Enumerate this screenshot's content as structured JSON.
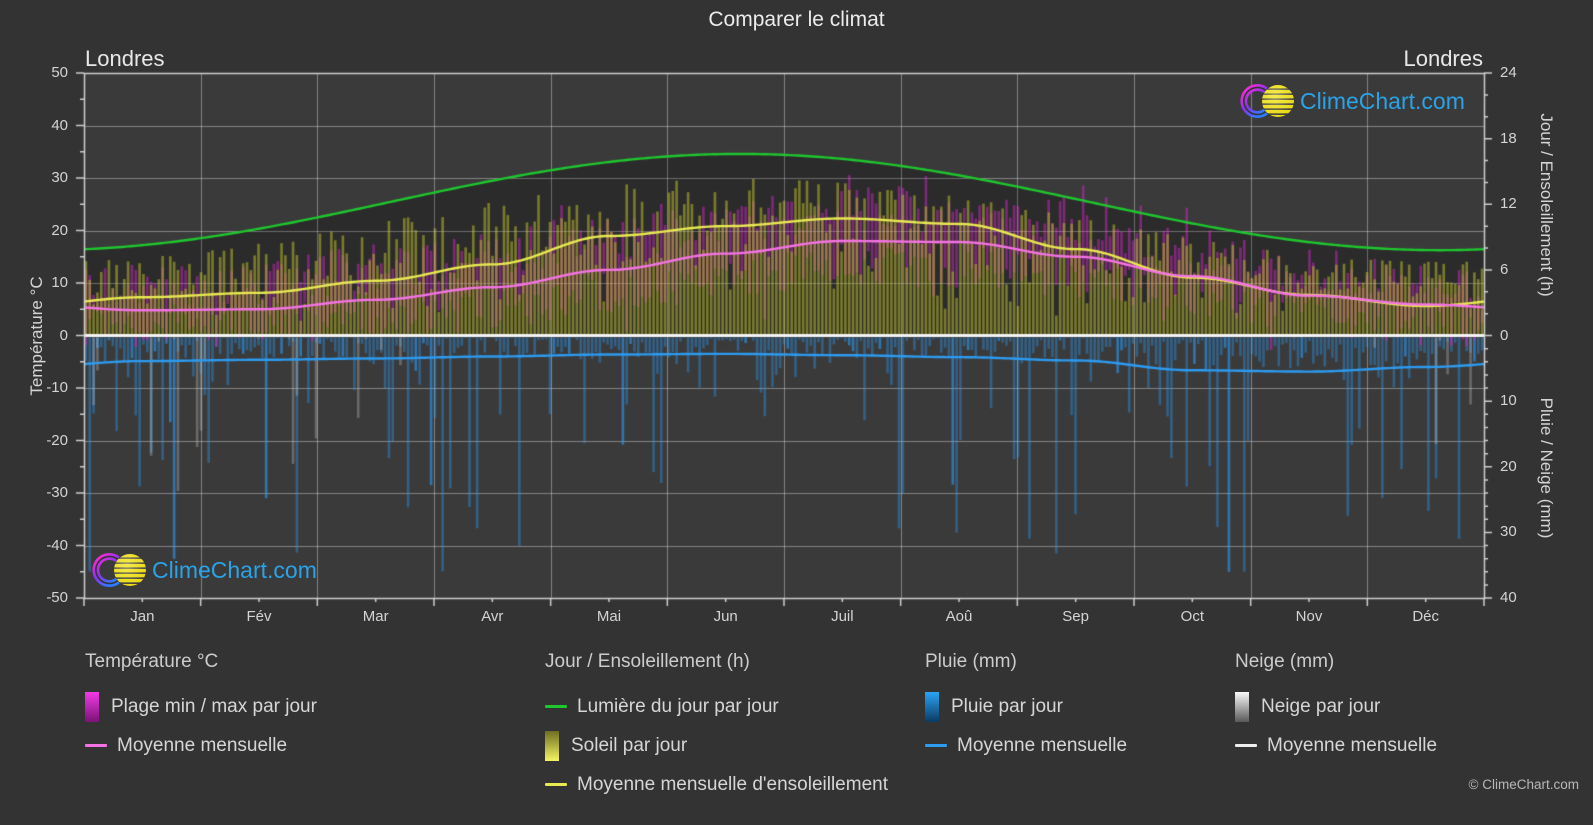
{
  "page": {
    "title": "Comparer le climat",
    "copyright": "© ClimeChart.com",
    "background": "#333333",
    "plot_background": "#3a3a3a"
  },
  "branding": {
    "logo_text": "ClimeChart.com",
    "logo_text_color": "#2aa3e8"
  },
  "panel_labels": {
    "left": "Londres",
    "right": "Londres"
  },
  "axes": {
    "left": {
      "title": "Température °C",
      "ticks": [
        50,
        40,
        30,
        20,
        10,
        0,
        -10,
        -20,
        -30,
        -40,
        -50
      ],
      "range": [
        -50,
        50
      ]
    },
    "right_top": {
      "title": "Jour / Ensoleillement (h)",
      "ticks": [
        24,
        18,
        12,
        6,
        0
      ],
      "range": [
        0,
        24
      ]
    },
    "right_bottom": {
      "title": "Pluie / Neige (mm)",
      "ticks": [
        10,
        20,
        30,
        40
      ],
      "range": [
        0,
        40
      ]
    },
    "x": {
      "months": [
        "Jan",
        "Fév",
        "Mar",
        "Avr",
        "Mai",
        "Jun",
        "Juil",
        "Aoû",
        "Sep",
        "Oct",
        "Nov",
        "Déc"
      ]
    }
  },
  "chart_data": {
    "type": "climate-composite",
    "location": "Londres",
    "months": [
      "Jan",
      "Fév",
      "Mar",
      "Avr",
      "Mai",
      "Jun",
      "Juil",
      "Aoû",
      "Sep",
      "Oct",
      "Nov",
      "Déc"
    ],
    "daylight_curve": {
      "mean_h": 12.2,
      "amplitude_h": 4.4,
      "peak_day_of_year": 171
    },
    "series": [
      {
        "name": "Lumière du jour par jour",
        "unit": "h",
        "type": "line",
        "color": "#1fc62e",
        "axis": "right_top",
        "monthly": [
          8.0,
          9.6,
          11.7,
          13.9,
          15.7,
          16.6,
          16.2,
          14.8,
          12.7,
          10.6,
          8.7,
          7.8
        ]
      },
      {
        "name": "Moyenne mensuelle d'ensoleillement",
        "unit": "h",
        "type": "line",
        "color": "#e8e952",
        "axis": "right_top",
        "monthly": [
          3.5,
          3.9,
          5.0,
          6.5,
          9.1,
          10.0,
          10.7,
          10.2,
          7.9,
          5.3,
          3.7,
          2.7
        ]
      },
      {
        "name": "Soleil par jour",
        "unit": "h",
        "type": "daily-bars",
        "color": "#afaf2d",
        "axis": "right_top",
        "monthly_typical_max": [
          7.0,
          8.4,
          10.3,
          12.2,
          13.8,
          14.6,
          14.3,
          13.0,
          11.2,
          9.3,
          7.7,
          6.9
        ]
      },
      {
        "name": "Plage min / max par jour",
        "unit": "°C",
        "type": "daily-range-bars",
        "color": "#cd28c3",
        "axis": "left",
        "monthly_min": [
          2.0,
          2.0,
          3.5,
          5.5,
          8.5,
          11.5,
          13.5,
          13.5,
          11.5,
          8.0,
          4.5,
          2.5
        ],
        "monthly_max": [
          8.0,
          9.0,
          12.0,
          15.0,
          18.0,
          21.0,
          23.0,
          23.0,
          20.0,
          15.0,
          11.0,
          8.0
        ]
      },
      {
        "name": "Moyenne mensuelle (température)",
        "unit": "°C",
        "type": "line",
        "color": "#f473e4",
        "axis": "left",
        "monthly": [
          4.8,
          5.0,
          6.8,
          9.2,
          12.5,
          15.6,
          18.0,
          17.8,
          15.0,
          11.3,
          7.6,
          5.9
        ]
      },
      {
        "name": "Pluie par jour",
        "unit": "mm",
        "type": "daily-bars",
        "color": "#2e86cf",
        "axis": "right_bottom",
        "monthly_mean": [
          3.9,
          3.7,
          3.5,
          3.2,
          2.9,
          2.8,
          3.0,
          3.3,
          3.8,
          5.3,
          5.5,
          4.8
        ]
      },
      {
        "name": "Moyenne mensuelle (pluie)",
        "unit": "mm",
        "type": "line",
        "color": "#2d9bf0",
        "axis": "right_bottom",
        "monthly": [
          3.9,
          3.7,
          3.5,
          3.2,
          2.9,
          2.8,
          3.0,
          3.3,
          3.8,
          5.3,
          5.5,
          4.8
        ]
      },
      {
        "name": "Neige par jour",
        "unit": "mm",
        "type": "daily-bars",
        "color": "#cfcfcf",
        "axis": "right_bottom",
        "monthly_mean": [
          0.5,
          0.45,
          0.2,
          0.02,
          0,
          0,
          0,
          0,
          0,
          0.02,
          0.1,
          0.4
        ]
      },
      {
        "name": "Moyenne mensuelle (neige)",
        "unit": "mm",
        "type": "line",
        "color": "#ededed",
        "axis": "right_bottom",
        "monthly": [
          0,
          0,
          0,
          0,
          0,
          0,
          0,
          0,
          0,
          0,
          0,
          0
        ]
      }
    ],
    "layout_hints": {
      "grid": true,
      "zero_line_color": "#f2f2f2",
      "daylight_shade": "rgba(0,0,0,0.26)"
    }
  },
  "legend": {
    "groups": [
      {
        "title": "Température °C",
        "items": [
          {
            "type": "gradient",
            "colors": [
              "#f23ae6",
              "#7c1277"
            ],
            "label": "Plage min / max par jour"
          },
          {
            "type": "line",
            "color": "#f473e4",
            "label": "Moyenne mensuelle"
          }
        ]
      },
      {
        "title": "Jour / Ensoleillement (h)",
        "items": [
          {
            "type": "line",
            "color": "#1fc62e",
            "label": "Lumière du jour par jour"
          },
          {
            "type": "gradient",
            "colors": [
              "#6e6e20",
              "#f4f464"
            ],
            "label": "Soleil par jour"
          },
          {
            "type": "line",
            "color": "#e8e952",
            "label": "Moyenne mensuelle d'ensoleillement"
          }
        ]
      },
      {
        "title": "Pluie (mm)",
        "items": [
          {
            "type": "gradient",
            "colors": [
              "#2aa3f5",
              "#0b3b63"
            ],
            "label": "Pluie par jour"
          },
          {
            "type": "line",
            "color": "#2d9bf0",
            "label": "Moyenne mensuelle"
          }
        ]
      },
      {
        "title": "Neige (mm)",
        "items": [
          {
            "type": "gradient",
            "colors": [
              "#fafafa",
              "#595959"
            ],
            "label": "Neige par jour"
          },
          {
            "type": "line",
            "color": "#ededed",
            "label": "Moyenne mensuelle"
          }
        ]
      }
    ]
  }
}
